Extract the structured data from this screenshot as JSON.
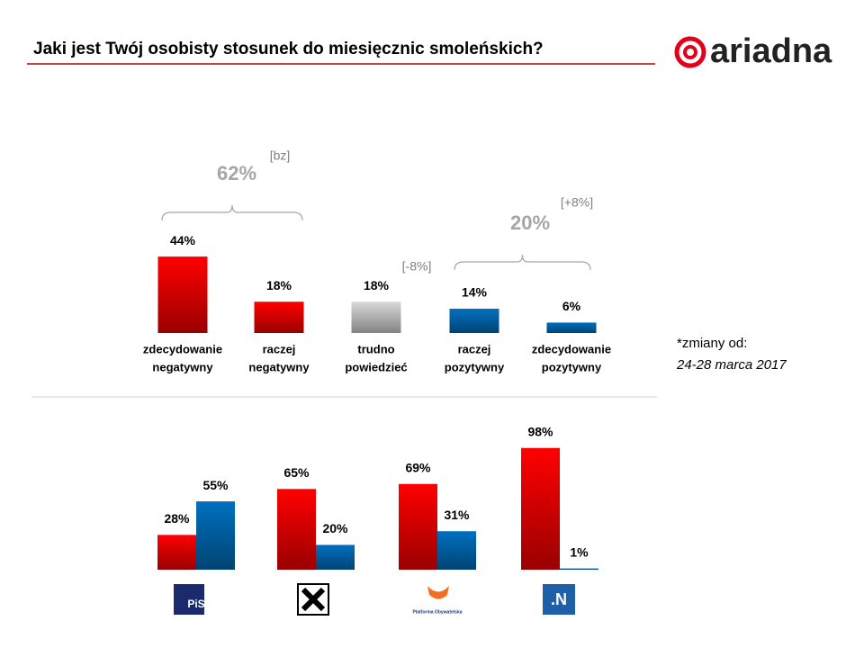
{
  "header": {
    "title": "Jaki jest Twój osobisty stosunek do miesięcznic smoleńskich?",
    "brand": "ariadna"
  },
  "note": {
    "lines": [
      "*zmiany od:",
      "24-28 marca 2017"
    ]
  },
  "chart_data": [
    {
      "type": "bar",
      "categories": [
        [
          "zdecydowanie",
          "negatywny"
        ],
        [
          "raczej",
          "negatywny"
        ],
        [
          "trudno",
          "powiedzieć"
        ],
        [
          "raczej",
          "pozytywny"
        ],
        [
          "zdecydowanie",
          "pozytywny"
        ]
      ],
      "values": [
        44,
        18,
        18,
        14,
        6
      ],
      "value_labels": [
        "44%",
        "18%",
        "18%",
        "14%",
        "6%"
      ],
      "colors": [
        "#ff0000",
        "#ff0000",
        "#d9d9d9",
        "#0070c0",
        "#0070c0"
      ],
      "annotations": [
        {
          "label": "62%",
          "change": "[bz]"
        },
        {
          "change": "[-8%]"
        },
        {
          "label": "20%",
          "change": "[+8%]"
        }
      ]
    },
    {
      "type": "grouped_bar",
      "categories": [
        "PiS",
        null,
        "Platforma Obywatelska",
        ".N"
      ],
      "series": [
        {
          "color": "#ff0000",
          "values": [
            28,
            65,
            69,
            98
          ],
          "value_labels": [
            "28%",
            "65%",
            "69%",
            "98%"
          ]
        },
        {
          "color": "#0070c0",
          "values": [
            55,
            20,
            31,
            1
          ],
          "value_labels": [
            "55%",
            "20%",
            "31%",
            "1%"
          ]
        }
      ]
    }
  ]
}
